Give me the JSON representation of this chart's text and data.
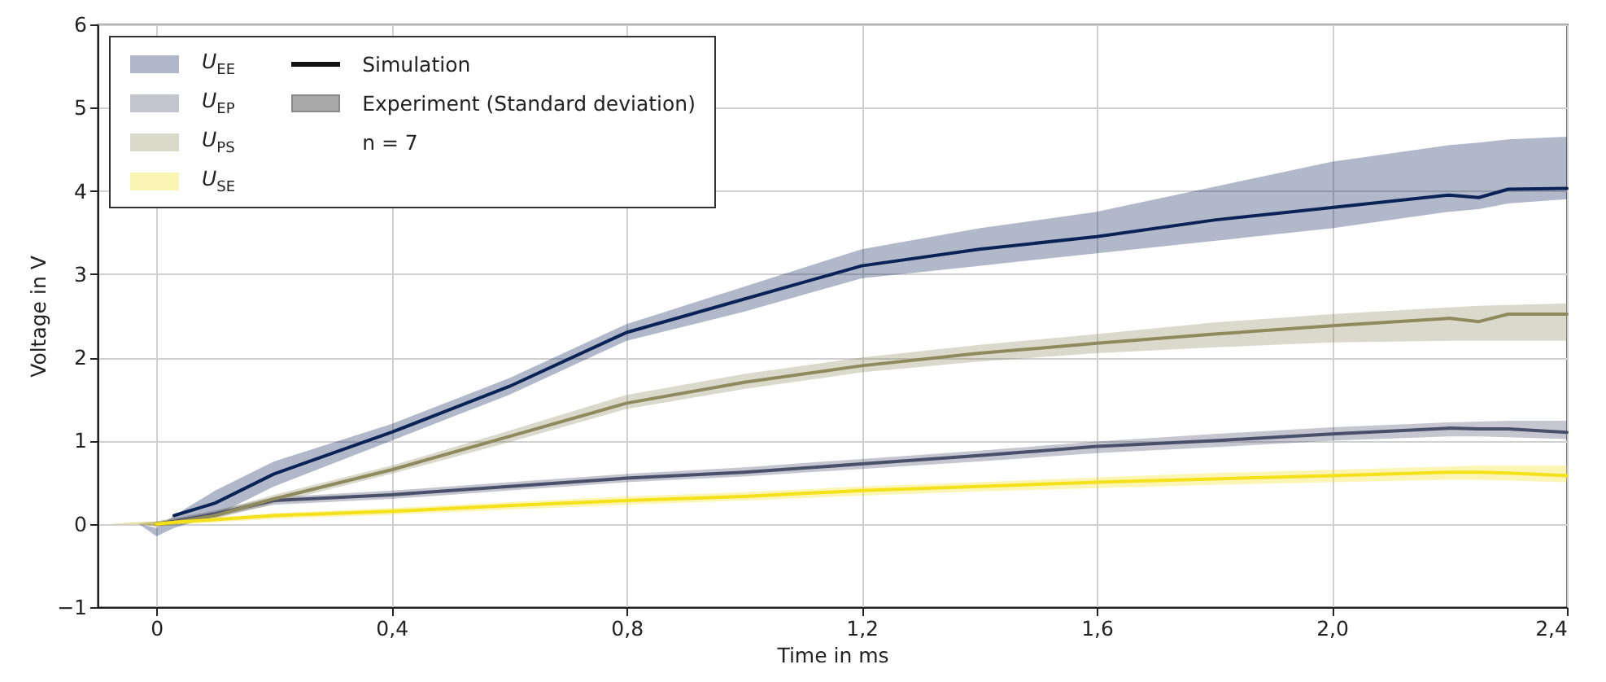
{
  "chart_data": {
    "type": "line",
    "xlabel": "Time in ms",
    "ylabel": "Voltage in V",
    "x": [
      -0.08,
      -0.03,
      0,
      0.03,
      0.1,
      0.2,
      0.4,
      0.6,
      0.8,
      1.0,
      1.2,
      1.4,
      1.6,
      1.8,
      2.0,
      2.2,
      2.25,
      2.3,
      2.4
    ],
    "series": [
      {
        "name": "U$_{EE}$",
        "color": "#0a2356",
        "values": [
          null,
          null,
          null,
          0.1,
          0.25,
          0.6,
          1.1,
          1.65,
          2.3,
          2.7,
          3.1,
          3.3,
          3.45,
          3.65,
          3.8,
          3.95,
          3.92,
          4.02,
          4.03
        ],
        "lower": [
          0,
          0,
          -0.15,
          -0.05,
          0.1,
          0.45,
          1.0,
          1.55,
          2.2,
          2.55,
          2.95,
          3.1,
          3.25,
          3.4,
          3.55,
          3.75,
          3.78,
          3.85,
          3.9
        ],
        "upper": [
          0,
          0,
          -0.05,
          0.1,
          0.4,
          0.75,
          1.2,
          1.75,
          2.4,
          2.85,
          3.3,
          3.55,
          3.75,
          4.05,
          4.35,
          4.55,
          4.58,
          4.62,
          4.65
        ]
      },
      {
        "name": "U$_{EP}$",
        "color": "#4a4f6b",
        "values": [
          null,
          null,
          0,
          0.03,
          0.12,
          0.28,
          0.35,
          0.45,
          0.55,
          0.62,
          0.72,
          0.82,
          0.93,
          1.0,
          1.08,
          1.15,
          1.14,
          1.14,
          1.1
        ],
        "lower": [
          0,
          0,
          -0.03,
          0,
          0.08,
          0.23,
          0.3,
          0.4,
          0.5,
          0.57,
          0.66,
          0.75,
          0.85,
          0.92,
          1.0,
          1.05,
          1.05,
          1.04,
          1.02
        ],
        "upper": [
          0,
          0,
          0.03,
          0.07,
          0.16,
          0.32,
          0.4,
          0.5,
          0.6,
          0.68,
          0.78,
          0.88,
          0.99,
          1.08,
          1.16,
          1.22,
          1.23,
          1.24,
          1.24
        ]
      },
      {
        "name": "U$_{PS}$",
        "color": "#8f8a5e",
        "values": [
          null,
          null,
          0,
          0.02,
          0.1,
          0.3,
          0.65,
          1.05,
          1.45,
          1.7,
          1.9,
          2.05,
          2.17,
          2.28,
          2.38,
          2.47,
          2.43,
          2.52,
          2.52
        ],
        "lower": [
          0,
          0,
          -0.03,
          -0.02,
          0.06,
          0.25,
          0.6,
          0.98,
          1.38,
          1.62,
          1.82,
          1.95,
          2.05,
          2.12,
          2.18,
          2.2,
          2.2,
          2.2,
          2.2
        ],
        "upper": [
          0,
          0.02,
          0.03,
          0.06,
          0.15,
          0.35,
          0.7,
          1.12,
          1.55,
          1.8,
          2.0,
          2.15,
          2.28,
          2.42,
          2.52,
          2.6,
          2.62,
          2.63,
          2.65
        ]
      },
      {
        "name": "U$_{SE}$",
        "color": "#f5e11a",
        "values": [
          null,
          null,
          0,
          0.02,
          0.05,
          0.1,
          0.15,
          0.22,
          0.28,
          0.33,
          0.4,
          0.45,
          0.5,
          0.54,
          0.58,
          0.62,
          0.62,
          0.61,
          0.58
        ],
        "lower": [
          0,
          0,
          -0.03,
          -0.01,
          0.02,
          0.06,
          0.11,
          0.17,
          0.23,
          0.28,
          0.34,
          0.39,
          0.43,
          0.47,
          0.5,
          0.53,
          0.53,
          0.52,
          0.5
        ],
        "upper": [
          0,
          0.02,
          0.03,
          0.05,
          0.08,
          0.13,
          0.19,
          0.26,
          0.33,
          0.38,
          0.45,
          0.5,
          0.56,
          0.61,
          0.65,
          0.69,
          0.7,
          0.7,
          0.7
        ]
      }
    ],
    "xlim": [
      -0.1,
      2.4
    ],
    "xticks": [
      {
        "value": 0,
        "label": "0"
      },
      {
        "value": 0.4,
        "label": "0,4"
      },
      {
        "value": 0.8,
        "label": "0,8"
      },
      {
        "value": 1.2,
        "label": "1,2"
      },
      {
        "value": 1.6,
        "label": "1,6"
      },
      {
        "value": 2.0,
        "label": "2,0"
      },
      {
        "value": 2.4,
        "label": "2,4"
      }
    ],
    "ylim": [
      -1,
      6
    ],
    "yticks": [
      -1,
      0,
      1,
      2,
      3,
      4,
      5,
      6
    ],
    "grid": true,
    "legend": "top left",
    "marker": "none",
    "line_style": "solid",
    "annotations": [
      "Simulation",
      "Experiment (Standard deviation)",
      "n = 7"
    ]
  }
}
